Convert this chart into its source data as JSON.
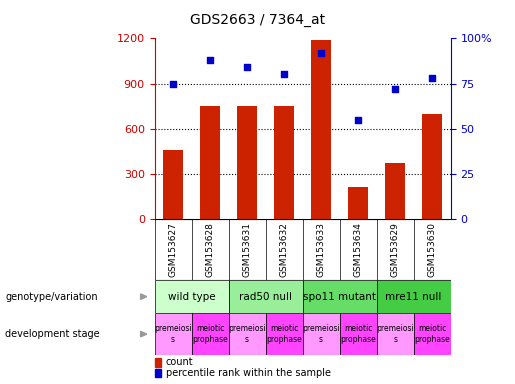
{
  "title": "GDS2663 / 7364_at",
  "samples": [
    "GSM153627",
    "GSM153628",
    "GSM153631",
    "GSM153632",
    "GSM153633",
    "GSM153634",
    "GSM153629",
    "GSM153630"
  ],
  "counts": [
    460,
    750,
    750,
    750,
    1190,
    215,
    370,
    700
  ],
  "percentiles": [
    75,
    88,
    84,
    80,
    92,
    55,
    72,
    78
  ],
  "ylim_left": [
    0,
    1200
  ],
  "ylim_right": [
    0,
    100
  ],
  "yticks_left": [
    0,
    300,
    600,
    900,
    1200
  ],
  "yticks_right": [
    0,
    25,
    50,
    75,
    100
  ],
  "ytick_labels_right": [
    "0",
    "25",
    "50",
    "75",
    "100%"
  ],
  "bar_color": "#CC2200",
  "scatter_color": "#0000CC",
  "genotype_groups": [
    {
      "label": "wild type",
      "start": 0,
      "end": 2,
      "color": "#CCFFCC"
    },
    {
      "label": "rad50 null",
      "start": 2,
      "end": 4,
      "color": "#99EE99"
    },
    {
      "label": "spo11 mutant",
      "start": 4,
      "end": 6,
      "color": "#66DD66"
    },
    {
      "label": "mre11 null",
      "start": 6,
      "end": 8,
      "color": "#44CC44"
    }
  ],
  "dev_stage_groups": [
    {
      "label": "premeiosi\ns",
      "start": 0,
      "end": 1,
      "color": "#FF99FF"
    },
    {
      "label": "meiotic\nprophase",
      "start": 1,
      "end": 2,
      "color": "#FF44FF"
    },
    {
      "label": "premeiosi\ns",
      "start": 2,
      "end": 3,
      "color": "#FF99FF"
    },
    {
      "label": "meiotic\nprophase",
      "start": 3,
      "end": 4,
      "color": "#FF44FF"
    },
    {
      "label": "premeiosi\ns",
      "start": 4,
      "end": 5,
      "color": "#FF99FF"
    },
    {
      "label": "meiotic\nprophase",
      "start": 5,
      "end": 6,
      "color": "#FF44FF"
    },
    {
      "label": "premeiosi\ns",
      "start": 6,
      "end": 7,
      "color": "#FF99FF"
    },
    {
      "label": "meiotic\nprophase",
      "start": 7,
      "end": 8,
      "color": "#FF44FF"
    }
  ],
  "sample_label_bg": "#CCCCCC",
  "left_axis_color": "#CC0000",
  "right_axis_color": "#0000CC",
  "grid_color": "#000000",
  "legend_items": [
    {
      "label": "count",
      "color": "#CC2200"
    },
    {
      "label": "percentile rank within the sample",
      "color": "#0000CC"
    }
  ]
}
